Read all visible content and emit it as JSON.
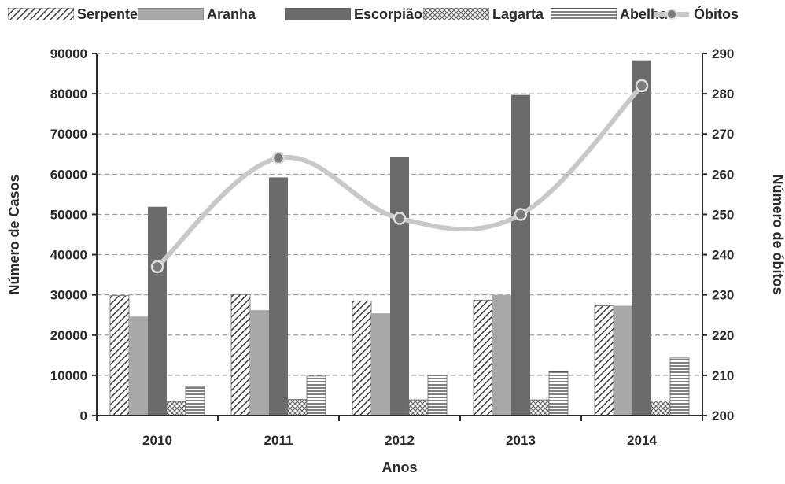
{
  "chart_data": {
    "type": "bar",
    "categories": [
      "2010",
      "2011",
      "2012",
      "2013",
      "2014"
    ],
    "series": [
      {
        "name": "Serpente",
        "values": [
          29800,
          30100,
          28500,
          28700,
          27300
        ],
        "color": "#6e6e6e",
        "pattern": "diagonal"
      },
      {
        "name": "Aranha",
        "values": [
          24600,
          26200,
          25400,
          30000,
          27300
        ],
        "color": "#a8a8a8",
        "pattern": "solid"
      },
      {
        "name": "Escorpião",
        "values": [
          51900,
          59200,
          64200,
          79700,
          88300
        ],
        "color": "#6b6b6b",
        "pattern": "solid"
      },
      {
        "name": "Lagarta",
        "values": [
          3500,
          4000,
          3900,
          3900,
          3600
        ],
        "color": "#7a7a7a",
        "pattern": "crosshatch"
      },
      {
        "name": "Abelha",
        "values": [
          7200,
          9800,
          10100,
          10900,
          14300
        ],
        "color": "#555555",
        "pattern": "horizontal"
      }
    ],
    "line_series": {
      "name": "Óbitos",
      "values": [
        237,
        264,
        249,
        250,
        282
      ],
      "color": "#c8c8c8",
      "marker_color": "#7a7a7a",
      "axis": "right"
    },
    "xlabel": "Anos",
    "ylabel": "Número de Casos",
    "ylabel_right": "Número de óbitos",
    "ylim": [
      0,
      90000
    ],
    "yticks": [
      "0",
      "10000",
      "20000",
      "30000",
      "40000",
      "50000",
      "60000",
      "70000",
      "80000",
      "90000"
    ],
    "ylim_right": [
      200,
      290
    ],
    "yticks_right": [
      "200",
      "210",
      "220",
      "230",
      "240",
      "250",
      "260",
      "270",
      "280",
      "290"
    ],
    "grid": "dashed horizontal",
    "legend": "top"
  }
}
